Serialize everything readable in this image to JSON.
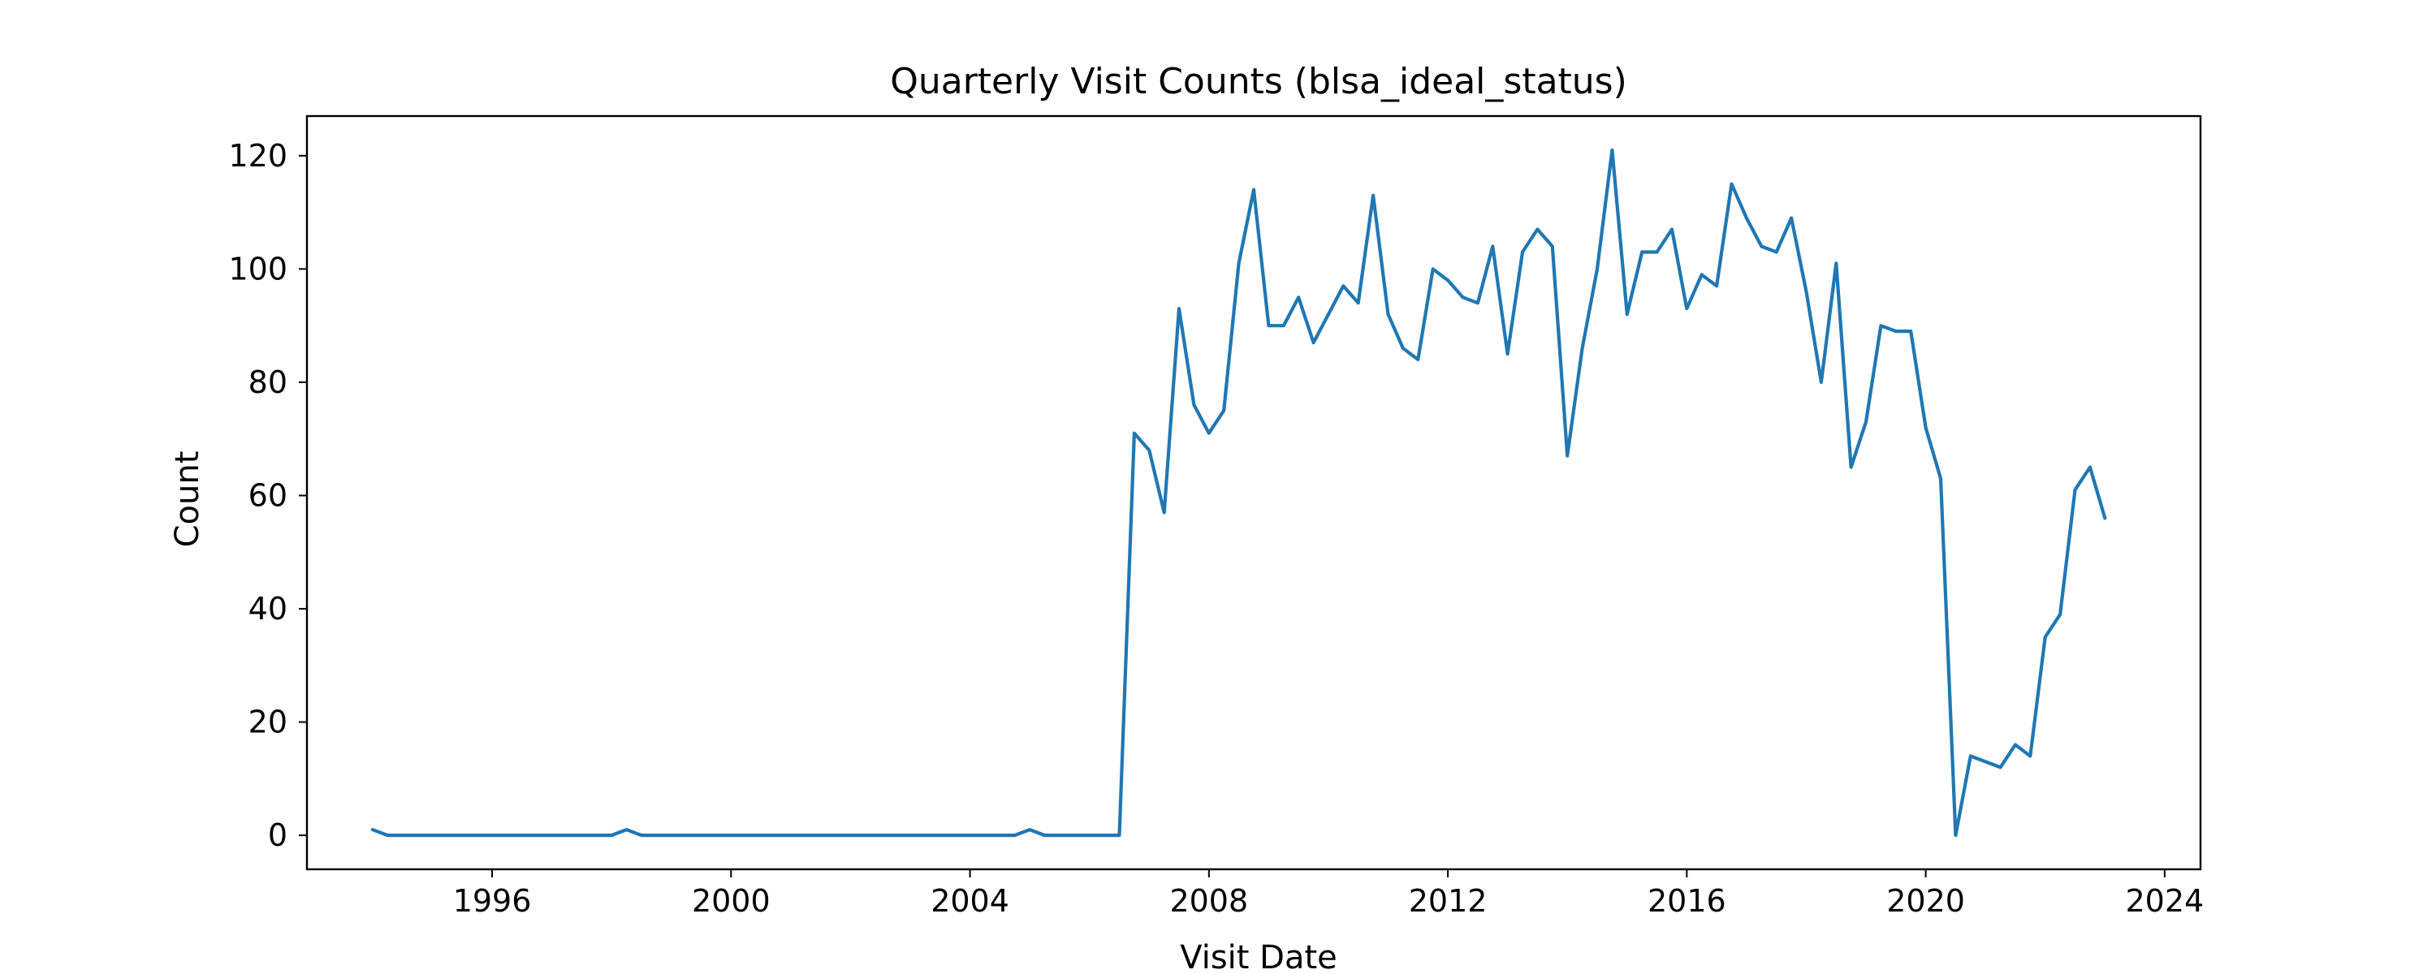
{
  "chart_data": {
    "type": "line",
    "title": "Quarterly Visit Counts (blsa_ideal_status)",
    "xlabel": "Visit Date",
    "ylabel": "Count",
    "x_tick_labels": [
      "1996",
      "2000",
      "2004",
      "2008",
      "2012",
      "2016",
      "2020",
      "2024"
    ],
    "y_tick_labels": [
      "0",
      "20",
      "40",
      "60",
      "80",
      "100",
      "120"
    ],
    "x_tick_values": [
      1996,
      2000,
      2004,
      2008,
      2012,
      2016,
      2020,
      2024
    ],
    "y_tick_values": [
      0,
      20,
      40,
      60,
      80,
      100,
      120
    ],
    "xlim": [
      1992.9,
      2024.6
    ],
    "ylim": [
      -6,
      127
    ],
    "grid": false,
    "series": [
      {
        "name": "",
        "color": "#1f77b4",
        "x": [
          1994.0,
          1994.25,
          1994.5,
          1994.75,
          1995.0,
          1995.25,
          1995.5,
          1995.75,
          1996.0,
          1996.25,
          1996.5,
          1996.75,
          1997.0,
          1997.25,
          1997.5,
          1997.75,
          1998.0,
          1998.25,
          1998.5,
          1998.75,
          1999.0,
          1999.25,
          1999.5,
          1999.75,
          2000.0,
          2000.25,
          2000.5,
          2000.75,
          2001.0,
          2001.25,
          2001.5,
          2001.75,
          2002.0,
          2002.25,
          2002.5,
          2002.75,
          2003.0,
          2003.25,
          2003.5,
          2003.75,
          2004.0,
          2004.25,
          2004.5,
          2004.75,
          2005.0,
          2005.25,
          2005.5,
          2005.75,
          2006.0,
          2006.25,
          2006.5,
          2006.75,
          2007.0,
          2007.25,
          2007.5,
          2007.75,
          2008.0,
          2008.25,
          2008.5,
          2008.75,
          2009.0,
          2009.25,
          2009.5,
          2009.75,
          2010.0,
          2010.25,
          2010.5,
          2010.75,
          2011.0,
          2011.25,
          2011.5,
          2011.75,
          2012.0,
          2012.25,
          2012.5,
          2012.75,
          2013.0,
          2013.25,
          2013.5,
          2013.75,
          2014.0,
          2014.25,
          2014.5,
          2014.75,
          2015.0,
          2015.25,
          2015.5,
          2015.75,
          2016.0,
          2016.25,
          2016.5,
          2016.75,
          2017.0,
          2017.25,
          2017.5,
          2017.75,
          2018.0,
          2018.25,
          2018.5,
          2018.75,
          2019.0,
          2019.25,
          2019.5,
          2019.75,
          2020.0,
          2020.25,
          2020.5,
          2020.75,
          2021.0,
          2021.25,
          2021.5,
          2021.75,
          2022.0,
          2022.25,
          2022.5,
          2022.75,
          2023.0
        ],
        "y": [
          1,
          0,
          0,
          0,
          0,
          0,
          0,
          0,
          0,
          0,
          0,
          0,
          0,
          0,
          0,
          0,
          0,
          1,
          0,
          0,
          0,
          0,
          0,
          0,
          0,
          0,
          0,
          0,
          0,
          0,
          0,
          0,
          0,
          0,
          0,
          0,
          0,
          0,
          0,
          0,
          0,
          0,
          0,
          0,
          1,
          0,
          0,
          0,
          0,
          0,
          0,
          71,
          68,
          57,
          93,
          76,
          71,
          75,
          101,
          114,
          90,
          90,
          95,
          87,
          92,
          97,
          94,
          113,
          92,
          86,
          84,
          100,
          98,
          95,
          94,
          104,
          85,
          103,
          107,
          104,
          67,
          86,
          100,
          121,
          92,
          103,
          103,
          107,
          93,
          99,
          97,
          115,
          109,
          104,
          103,
          109,
          96,
          80,
          101,
          65,
          73,
          90,
          89,
          89,
          72,
          63,
          0,
          14,
          13,
          12,
          16,
          14,
          35,
          39,
          61,
          65,
          56
        ]
      }
    ]
  }
}
